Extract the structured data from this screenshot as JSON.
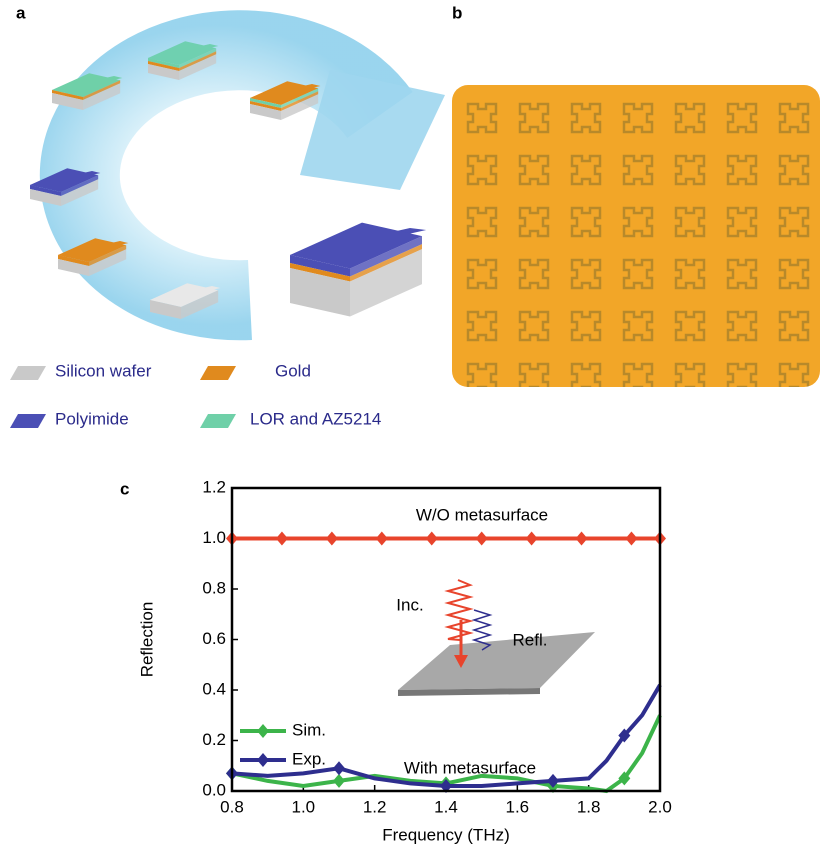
{
  "panel_labels": [
    "a",
    "b",
    "c"
  ],
  "legend_a": [
    "Silicon wafer",
    "Gold",
    "Polyimide",
    "LOR and AZ5214"
  ],
  "chart_data": {
    "type": "line",
    "xlabel": "Frequency (THz)",
    "ylabel": "Reflection",
    "xlim": [
      0.8,
      2.0
    ],
    "ylim": [
      0,
      1.2
    ],
    "xticks": [
      0.8,
      {
        "value": 1,
        "label": "1.0"
      },
      1.2,
      1.4,
      1.6,
      1.8,
      {
        "value": 2,
        "label": "2.0"
      }
    ],
    "yticks": [
      {
        "value": 0,
        "label": "0.0"
      },
      0.2,
      0.4,
      0.6,
      0.8,
      {
        "value": 1,
        "label": "1.0"
      },
      1.2
    ],
    "annotations": [
      "W/O metasurface",
      "With metasurface",
      "Inc.",
      "Refl."
    ],
    "series": [
      {
        "name": "W/O metasurface",
        "color": "#e8442c",
        "x": [
          0.8,
          0.94,
          1.08,
          1.22,
          1.36,
          1.5,
          1.64,
          1.78,
          1.92,
          2.0
        ],
        "values": [
          1,
          1,
          1,
          1,
          1,
          1,
          1,
          1,
          1,
          1
        ]
      },
      {
        "name": "Sim.",
        "color": "#3cb44a",
        "x": [
          0.8,
          0.9,
          1.0,
          1.1,
          1.2,
          1.3,
          1.4,
          1.5,
          1.6,
          1.7,
          1.8,
          1.85,
          1.9,
          1.95,
          2.0
        ],
        "values": [
          0.07,
          0.04,
          0.02,
          0.04,
          0.06,
          0.04,
          0.03,
          0.06,
          0.05,
          0.02,
          0.01,
          0.0,
          0.05,
          0.15,
          0.3
        ]
      },
      {
        "name": "Exp.",
        "color": "#2e2e8e",
        "x": [
          0.8,
          0.9,
          1.0,
          1.1,
          1.2,
          1.3,
          1.4,
          1.5,
          1.6,
          1.7,
          1.8,
          1.85,
          1.9,
          1.95,
          2.0
        ],
        "values": [
          0.07,
          0.06,
          0.07,
          0.09,
          0.05,
          0.03,
          0.02,
          0.02,
          0.03,
          0.04,
          0.05,
          0.12,
          0.22,
          0.3,
          0.42
        ]
      }
    ]
  }
}
